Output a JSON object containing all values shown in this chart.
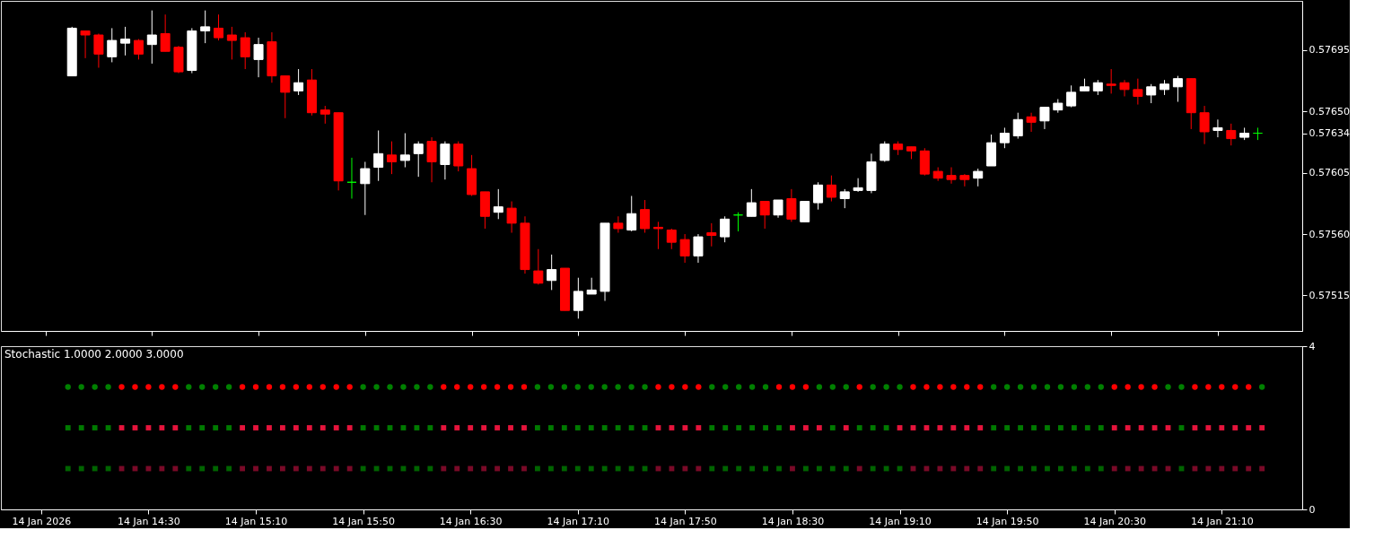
{
  "chart_data": [
    {
      "type": "candlestick",
      "x": [
        "2026-01-14T14:00",
        "2026-01-14T14:05",
        "2026-01-14T14:10",
        "2026-01-14T14:15",
        "2026-01-14T14:20",
        "2026-01-14T14:25",
        "2026-01-14T14:30",
        "2026-01-14T14:35",
        "2026-01-14T14:40",
        "2026-01-14T14:45",
        "2026-01-14T14:50",
        "2026-01-14T14:55",
        "2026-01-14T15:00",
        "2026-01-14T15:05",
        "2026-01-14T15:10",
        "2026-01-14T15:15",
        "2026-01-14T15:20",
        "2026-01-14T15:25",
        "2026-01-14T15:30",
        "2026-01-14T15:35",
        "2026-01-14T15:40",
        "2026-01-14T15:45",
        "2026-01-14T15:50",
        "2026-01-14T15:55",
        "2026-01-14T16:00",
        "2026-01-14T16:05",
        "2026-01-14T16:10",
        "2026-01-14T16:15",
        "2026-01-14T16:20",
        "2026-01-14T16:25",
        "2026-01-14T16:30",
        "2026-01-14T16:35",
        "2026-01-14T16:40",
        "2026-01-14T16:45",
        "2026-01-14T16:50",
        "2026-01-14T16:55",
        "2026-01-14T17:00",
        "2026-01-14T17:05",
        "2026-01-14T17:10",
        "2026-01-14T17:15",
        "2026-01-14T17:20",
        "2026-01-14T17:25",
        "2026-01-14T17:30",
        "2026-01-14T17:35",
        "2026-01-14T17:40",
        "2026-01-14T17:45",
        "2026-01-14T17:50",
        "2026-01-14T17:55",
        "2026-01-14T18:00",
        "2026-01-14T18:05",
        "2026-01-14T18:10",
        "2026-01-14T18:15",
        "2026-01-14T18:20",
        "2026-01-14T18:25",
        "2026-01-14T18:30",
        "2026-01-14T18:35",
        "2026-01-14T18:40",
        "2026-01-14T18:45",
        "2026-01-14T18:50",
        "2026-01-14T18:55",
        "2026-01-14T19:00",
        "2026-01-14T19:05",
        "2026-01-14T19:10",
        "2026-01-14T19:15",
        "2026-01-14T19:20",
        "2026-01-14T19:25",
        "2026-01-14T19:30",
        "2026-01-14T19:35",
        "2026-01-14T19:40",
        "2026-01-14T19:45",
        "2026-01-14T19:50",
        "2026-01-14T19:55",
        "2026-01-14T20:00",
        "2026-01-14T20:05",
        "2026-01-14T20:10",
        "2026-01-14T20:15",
        "2026-01-14T20:20",
        "2026-01-14T20:25",
        "2026-01-14T20:30",
        "2026-01-14T20:35",
        "2026-01-14T20:40",
        "2026-01-14T20:45",
        "2026-01-14T20:50",
        "2026-01-14T20:55",
        "2026-01-14T21:00",
        "2026-01-14T21:05",
        "2026-01-14T21:10",
        "2026-01-14T21:15",
        "2026-01-14T21:20",
        "2026-01-14T21:25"
      ],
      "ohlc": [
        [
          0.57676,
          0.57712,
          0.57676,
          0.57711
        ],
        [
          0.57709,
          0.57709,
          0.57689,
          0.57706
        ],
        [
          0.57706,
          0.57707,
          0.57682,
          0.57692
        ],
        [
          0.5769,
          0.57711,
          0.57686,
          0.57702
        ],
        [
          0.577,
          0.57712,
          0.57691,
          0.57703
        ],
        [
          0.57702,
          0.57703,
          0.57688,
          0.57692
        ],
        [
          0.57699,
          0.57724,
          0.57685,
          0.57706
        ],
        [
          0.57707,
          0.57721,
          0.57694,
          0.57694
        ],
        [
          0.57697,
          0.57698,
          0.57678,
          0.57679
        ],
        [
          0.5768,
          0.57711,
          0.57678,
          0.57709
        ],
        [
          0.57709,
          0.57724,
          0.577,
          0.57712
        ],
        [
          0.57711,
          0.57721,
          0.57702,
          0.57704
        ],
        [
          0.57706,
          0.57712,
          0.57688,
          0.57702
        ],
        [
          0.57704,
          0.57708,
          0.57681,
          0.5769
        ],
        [
          0.57688,
          0.57704,
          0.57675,
          0.57699
        ],
        [
          0.57701,
          0.57708,
          0.57671,
          0.57676
        ],
        [
          0.57676,
          0.57676,
          0.57645,
          0.57664
        ],
        [
          0.57665,
          0.57681,
          0.57662,
          0.57671
        ],
        [
          0.57673,
          0.57681,
          0.57647,
          0.57649
        ],
        [
          0.57651,
          0.57654,
          0.57641,
          0.57648
        ],
        [
          0.57649,
          0.57649,
          0.57592,
          0.57599
        ],
        [
          0.57598,
          0.57616,
          0.57586,
          0.57598
        ],
        [
          0.57597,
          0.57613,
          0.57574,
          0.57608
        ],
        [
          0.57609,
          0.57636,
          0.57599,
          0.57619
        ],
        [
          0.57618,
          0.57628,
          0.57604,
          0.57613
        ],
        [
          0.57614,
          0.57634,
          0.57609,
          0.57618
        ],
        [
          0.57619,
          0.57628,
          0.57602,
          0.57626
        ],
        [
          0.57628,
          0.57631,
          0.57598,
          0.57613
        ],
        [
          0.57611,
          0.57628,
          0.576,
          0.57626
        ],
        [
          0.57626,
          0.57628,
          0.57606,
          0.5761
        ],
        [
          0.57608,
          0.57618,
          0.57588,
          0.57589
        ],
        [
          0.57591,
          0.57591,
          0.57564,
          0.57573
        ],
        [
          0.57576,
          0.57593,
          0.57571,
          0.5758
        ],
        [
          0.57579,
          0.57584,
          0.57561,
          0.57568
        ],
        [
          0.57568,
          0.57573,
          0.57531,
          0.57534
        ],
        [
          0.57533,
          0.57549,
          0.57523,
          0.57524
        ],
        [
          0.57526,
          0.57545,
          0.57519,
          0.57534
        ],
        [
          0.57535,
          0.57535,
          0.57504,
          0.57504
        ],
        [
          0.57504,
          0.57528,
          0.57498,
          0.57518
        ],
        [
          0.57516,
          0.57528,
          0.57516,
          0.57519
        ],
        [
          0.57518,
          0.57568,
          0.57511,
          0.57568
        ],
        [
          0.57568,
          0.57573,
          0.57561,
          0.57564
        ],
        [
          0.57563,
          0.57588,
          0.57562,
          0.57575
        ],
        [
          0.57578,
          0.57585,
          0.57561,
          0.57564
        ],
        [
          0.57565,
          0.57569,
          0.57549,
          0.57564
        ],
        [
          0.57563,
          0.57564,
          0.57549,
          0.57554
        ],
        [
          0.57556,
          0.5756,
          0.57539,
          0.57544
        ],
        [
          0.57544,
          0.5756,
          0.57539,
          0.57558
        ],
        [
          0.57561,
          0.57568,
          0.57551,
          0.57559
        ],
        [
          0.57558,
          0.57573,
          0.57554,
          0.57571
        ],
        [
          0.57574,
          0.57576,
          0.57562,
          0.57574
        ],
        [
          0.57573,
          0.57593,
          0.57573,
          0.57583
        ],
        [
          0.57584,
          0.57584,
          0.57564,
          0.57574
        ],
        [
          0.57574,
          0.57585,
          0.57572,
          0.57585
        ],
        [
          0.57586,
          0.57593,
          0.57569,
          0.57571
        ],
        [
          0.57569,
          0.57584,
          0.57569,
          0.57584
        ],
        [
          0.57583,
          0.57598,
          0.57578,
          0.57596
        ],
        [
          0.57596,
          0.57603,
          0.57584,
          0.57587
        ],
        [
          0.57586,
          0.57593,
          0.57579,
          0.57591
        ],
        [
          0.57592,
          0.57601,
          0.57591,
          0.57594
        ],
        [
          0.57592,
          0.57619,
          0.5759,
          0.57613
        ],
        [
          0.57614,
          0.57628,
          0.57613,
          0.57626
        ],
        [
          0.57626,
          0.57628,
          0.57618,
          0.57622
        ],
        [
          0.57624,
          0.57624,
          0.57615,
          0.57621
        ],
        [
          0.57621,
          0.57623,
          0.57603,
          0.57604
        ],
        [
          0.57606,
          0.57609,
          0.57599,
          0.57601
        ],
        [
          0.57603,
          0.57609,
          0.57597,
          0.576
        ],
        [
          0.57603,
          0.57604,
          0.57595,
          0.576
        ],
        [
          0.57601,
          0.57608,
          0.57595,
          0.57606
        ],
        [
          0.5761,
          0.57633,
          0.5761,
          0.57627
        ],
        [
          0.57627,
          0.57638,
          0.57623,
          0.57634
        ],
        [
          0.57632,
          0.57649,
          0.5763,
          0.57644
        ],
        [
          0.57646,
          0.57649,
          0.57635,
          0.57642
        ],
        [
          0.57643,
          0.57653,
          0.57637,
          0.57653
        ],
        [
          0.57651,
          0.57659,
          0.57649,
          0.57656
        ],
        [
          0.57654,
          0.57669,
          0.57653,
          0.57664
        ],
        [
          0.57665,
          0.57674,
          0.57665,
          0.57668
        ],
        [
          0.57665,
          0.57673,
          0.57662,
          0.57671
        ],
        [
          0.5767,
          0.57681,
          0.57663,
          0.57669
        ],
        [
          0.57671,
          0.57673,
          0.57661,
          0.57666
        ],
        [
          0.57666,
          0.57674,
          0.57655,
          0.57661
        ],
        [
          0.57662,
          0.5767,
          0.57656,
          0.57668
        ],
        [
          0.57666,
          0.57673,
          0.57662,
          0.5767
        ],
        [
          0.57668,
          0.57676,
          0.57657,
          0.57674
        ],
        [
          0.57674,
          0.57674,
          0.57637,
          0.57649
        ],
        [
          0.57649,
          0.57654,
          0.57626,
          0.57635
        ],
        [
          0.57636,
          0.57644,
          0.57631,
          0.57638
        ],
        [
          0.57636,
          0.57641,
          0.57625,
          0.5763
        ],
        [
          0.57631,
          0.57638,
          0.57629,
          0.57634
        ],
        [
          0.57634,
          0.57638,
          0.57629,
          0.57634
        ]
      ],
      "colors": [
        "#ffffff",
        "#ff0000",
        "#ff0000",
        "#ffffff",
        "#ffffff",
        "#ff0000",
        "#ffffff",
        "#ff0000",
        "#ff0000",
        "#ffffff",
        "#ffffff",
        "#ff0000",
        "#ff0000",
        "#ff0000",
        "#ffffff",
        "#ff0000",
        "#ff0000",
        "#ffffff",
        "#ff0000",
        "#ff0000",
        "#ff0000",
        "#00ff00",
        "#ffffff",
        "#ffffff",
        "#ff0000",
        "#ffffff",
        "#ffffff",
        "#ff0000",
        "#ffffff",
        "#ff0000",
        "#ff0000",
        "#ff0000",
        "#ffffff",
        "#ff0000",
        "#ff0000",
        "#ff0000",
        "#ffffff",
        "#ff0000",
        "#ffffff",
        "#ffffff",
        "#ffffff",
        "#ff0000",
        "#ffffff",
        "#ff0000",
        "#ff0000",
        "#ff0000",
        "#ff0000",
        "#ffffff",
        "#ff0000",
        "#ffffff",
        "#00ff00",
        "#ffffff",
        "#ff0000",
        "#ffffff",
        "#ff0000",
        "#ffffff",
        "#ffffff",
        "#ff0000",
        "#ffffff",
        "#ffffff",
        "#ffffff",
        "#ffffff",
        "#ff0000",
        "#ff0000",
        "#ff0000",
        "#ff0000",
        "#ff0000",
        "#ff0000",
        "#ffffff",
        "#ffffff",
        "#ffffff",
        "#ffffff",
        "#ff0000",
        "#ffffff",
        "#ffffff",
        "#ffffff",
        "#ffffff",
        "#ffffff",
        "#ff0000",
        "#ff0000",
        "#ff0000",
        "#ffffff",
        "#ffffff",
        "#ffffff",
        "#ff0000",
        "#ff0000",
        "#ffffff",
        "#ff0000",
        "#ffffff",
        "#00ff00"
      ],
      "xlim": [
        "2026-01-14T13:35",
        "2026-01-14T21:40"
      ],
      "xticks": [
        {
          "value": "2026-01-14T13:50",
          "label": null
        },
        {
          "value": "2026-01-14T14:30",
          "label": null
        },
        {
          "value": "2026-01-14T15:10",
          "label": null
        },
        {
          "value": "2026-01-14T15:50",
          "label": null
        },
        {
          "value": "2026-01-14T16:30",
          "label": null
        },
        {
          "value": "2026-01-14T17:10",
          "label": null
        },
        {
          "value": "2026-01-14T17:50",
          "label": null
        },
        {
          "value": "2026-01-14T18:30",
          "label": null
        },
        {
          "value": "2026-01-14T19:10",
          "label": null
        },
        {
          "value": "2026-01-14T19:50",
          "label": null
        },
        {
          "value": "2026-01-14T20:30",
          "label": null
        },
        {
          "value": "2026-01-14T21:10",
          "label": null
        }
      ],
      "ylim": [
        0.57489,
        0.57731
      ],
      "yticks": [
        {
          "value": 0.57515,
          "label": "0.57515"
        },
        {
          "value": 0.5756,
          "label": "0.57560"
        },
        {
          "value": 0.57605,
          "label": "0.57605"
        },
        {
          "value": 0.57634,
          "label": "0.57634"
        },
        {
          "value": 0.5765,
          "label": "0.57650"
        },
        {
          "value": 0.57695,
          "label": "0.57695"
        }
      ],
      "tick_labels": "y"
    },
    {
      "type": "scatter",
      "title": "Stochastic 1.0000 2.0000 3.0000",
      "x": [
        "2026-01-14T14:00",
        "2026-01-14T14:05",
        "2026-01-14T14:10",
        "2026-01-14T14:15",
        "2026-01-14T14:20",
        "2026-01-14T14:25",
        "2026-01-14T14:30",
        "2026-01-14T14:35",
        "2026-01-14T14:40",
        "2026-01-14T14:45",
        "2026-01-14T14:50",
        "2026-01-14T14:55",
        "2026-01-14T15:00",
        "2026-01-14T15:05",
        "2026-01-14T15:10",
        "2026-01-14T15:15",
        "2026-01-14T15:20",
        "2026-01-14T15:25",
        "2026-01-14T15:30",
        "2026-01-14T15:35",
        "2026-01-14T15:40",
        "2026-01-14T15:45",
        "2026-01-14T15:50",
        "2026-01-14T15:55",
        "2026-01-14T16:00",
        "2026-01-14T16:05",
        "2026-01-14T16:10",
        "2026-01-14T16:15",
        "2026-01-14T16:20",
        "2026-01-14T16:25",
        "2026-01-14T16:30",
        "2026-01-14T16:35",
        "2026-01-14T16:40",
        "2026-01-14T16:45",
        "2026-01-14T16:50",
        "2026-01-14T16:55",
        "2026-01-14T17:00",
        "2026-01-14T17:05",
        "2026-01-14T17:10",
        "2026-01-14T17:15",
        "2026-01-14T17:20",
        "2026-01-14T17:25",
        "2026-01-14T17:30",
        "2026-01-14T17:35",
        "2026-01-14T17:40",
        "2026-01-14T17:45",
        "2026-01-14T17:50",
        "2026-01-14T17:55",
        "2026-01-14T18:00",
        "2026-01-14T18:05",
        "2026-01-14T18:10",
        "2026-01-14T18:15",
        "2026-01-14T18:20",
        "2026-01-14T18:25",
        "2026-01-14T18:30",
        "2026-01-14T18:35",
        "2026-01-14T18:40",
        "2026-01-14T18:45",
        "2026-01-14T18:50",
        "2026-01-14T18:55",
        "2026-01-14T19:00",
        "2026-01-14T19:05",
        "2026-01-14T19:10",
        "2026-01-14T19:15",
        "2026-01-14T19:20",
        "2026-01-14T19:25",
        "2026-01-14T19:30",
        "2026-01-14T19:35",
        "2026-01-14T19:40",
        "2026-01-14T19:45",
        "2026-01-14T19:50",
        "2026-01-14T19:55",
        "2026-01-14T20:00",
        "2026-01-14T20:05",
        "2026-01-14T20:10",
        "2026-01-14T20:15",
        "2026-01-14T20:20",
        "2026-01-14T20:25",
        "2026-01-14T20:30",
        "2026-01-14T20:35",
        "2026-01-14T20:40",
        "2026-01-14T20:45",
        "2026-01-14T20:50",
        "2026-01-14T20:55",
        "2026-01-14T21:00",
        "2026-01-14T21:05",
        "2026-01-14T21:10",
        "2026-01-14T21:15",
        "2026-01-14T21:20",
        "2026-01-14T21:25"
      ],
      "series": [
        {
          "marker": "circle",
          "values": [
            3,
            3,
            3,
            3,
            3,
            3,
            3,
            3,
            3,
            3,
            3,
            3,
            3,
            3,
            3,
            3,
            3,
            3,
            3,
            3,
            3,
            3,
            3,
            3,
            3,
            3,
            3,
            3,
            3,
            3,
            3,
            3,
            3,
            3,
            3,
            3,
            3,
            3,
            3,
            3,
            3,
            3,
            3,
            3,
            3,
            3,
            3,
            3,
            3,
            3,
            3,
            3,
            3,
            3,
            3,
            3,
            3,
            3,
            3,
            3,
            3,
            3,
            3,
            3,
            3,
            3,
            3,
            3,
            3,
            3,
            3,
            3,
            3,
            3,
            3,
            3,
            3,
            3,
            3,
            3,
            3,
            3,
            3,
            3,
            3,
            3,
            3,
            3,
            3,
            3
          ],
          "colors": [
            "#008000",
            "#008000",
            "#008000",
            "#008000",
            "#ff0000",
            "#ff0000",
            "#ff0000",
            "#ff0000",
            "#ff0000",
            "#008000",
            "#008000",
            "#008000",
            "#008000",
            "#ff0000",
            "#ff0000",
            "#ff0000",
            "#ff0000",
            "#ff0000",
            "#ff0000",
            "#ff0000",
            "#ff0000",
            "#ff0000",
            "#008000",
            "#008000",
            "#008000",
            "#008000",
            "#008000",
            "#008000",
            "#ff0000",
            "#ff0000",
            "#ff0000",
            "#ff0000",
            "#ff0000",
            "#ff0000",
            "#ff0000",
            "#008000",
            "#008000",
            "#008000",
            "#008000",
            "#008000",
            "#008000",
            "#008000",
            "#008000",
            "#008000",
            "#ff0000",
            "#ff0000",
            "#ff0000",
            "#ff0000",
            "#008000",
            "#008000",
            "#008000",
            "#008000",
            "#008000",
            "#ff0000",
            "#ff0000",
            "#ff0000",
            "#008000",
            "#008000",
            "#008000",
            "#ff0000",
            "#008000",
            "#008000",
            "#008000",
            "#ff0000",
            "#ff0000",
            "#ff0000",
            "#ff0000",
            "#ff0000",
            "#ff0000",
            "#008000",
            "#008000",
            "#008000",
            "#008000",
            "#008000",
            "#008000",
            "#008000",
            "#008000",
            "#008000",
            "#ff0000",
            "#ff0000",
            "#ff0000",
            "#ff0000",
            "#008000",
            "#008000",
            "#ff0000",
            "#ff0000",
            "#ff0000",
            "#ff0000",
            "#ff0000",
            "#008000"
          ]
        },
        {
          "marker": "square",
          "values": [
            2,
            2,
            2,
            2,
            2,
            2,
            2,
            2,
            2,
            2,
            2,
            2,
            2,
            2,
            2,
            2,
            2,
            2,
            2,
            2,
            2,
            2,
            2,
            2,
            2,
            2,
            2,
            2,
            2,
            2,
            2,
            2,
            2,
            2,
            2,
            2,
            2,
            2,
            2,
            2,
            2,
            2,
            2,
            2,
            2,
            2,
            2,
            2,
            2,
            2,
            2,
            2,
            2,
            2,
            2,
            2,
            2,
            2,
            2,
            2,
            2,
            2,
            2,
            2,
            2,
            2,
            2,
            2,
            2,
            2,
            2,
            2,
            2,
            2,
            2,
            2,
            2,
            2,
            2,
            2,
            2,
            2,
            2,
            2,
            2,
            2,
            2,
            2,
            2,
            2
          ],
          "colors": [
            "#007a00",
            "#007a00",
            "#007a00",
            "#007a00",
            "#e6143c",
            "#e6143c",
            "#e6143c",
            "#e6143c",
            "#e6143c",
            "#007a00",
            "#007a00",
            "#007a00",
            "#007a00",
            "#e6143c",
            "#e6143c",
            "#e6143c",
            "#e6143c",
            "#e6143c",
            "#e6143c",
            "#e6143c",
            "#e6143c",
            "#e6143c",
            "#007a00",
            "#007a00",
            "#007a00",
            "#007a00",
            "#007a00",
            "#007a00",
            "#e6143c",
            "#e6143c",
            "#e6143c",
            "#e6143c",
            "#e6143c",
            "#e6143c",
            "#e6143c",
            "#007a00",
            "#007a00",
            "#007a00",
            "#007a00",
            "#007a00",
            "#007a00",
            "#007a00",
            "#007a00",
            "#007a00",
            "#e6143c",
            "#e6143c",
            "#e6143c",
            "#e6143c",
            "#007a00",
            "#007a00",
            "#007a00",
            "#007a00",
            "#007a00",
            "#007a00",
            "#e6143c",
            "#e6143c",
            "#e6143c",
            "#007a00",
            "#e6143c",
            "#007a00",
            "#007a00",
            "#007a00",
            "#e6143c",
            "#e6143c",
            "#e6143c",
            "#e6143c",
            "#e6143c",
            "#e6143c",
            "#e6143c",
            "#007a00",
            "#007a00",
            "#007a00",
            "#007a00",
            "#007a00",
            "#007a00",
            "#007a00",
            "#007a00",
            "#007a00",
            "#e6143c",
            "#e6143c",
            "#e6143c",
            "#e6143c",
            "#e6143c",
            "#007a00",
            "#e6143c",
            "#e6143c",
            "#e6143c",
            "#e6143c",
            "#e6143c",
            "#e6143c"
          ]
        },
        {
          "marker": "square",
          "values": [
            1,
            1,
            1,
            1,
            1,
            1,
            1,
            1,
            1,
            1,
            1,
            1,
            1,
            1,
            1,
            1,
            1,
            1,
            1,
            1,
            1,
            1,
            1,
            1,
            1,
            1,
            1,
            1,
            1,
            1,
            1,
            1,
            1,
            1,
            1,
            1,
            1,
            1,
            1,
            1,
            1,
            1,
            1,
            1,
            1,
            1,
            1,
            1,
            1,
            1,
            1,
            1,
            1,
            1,
            1,
            1,
            1,
            1,
            1,
            1,
            1,
            1,
            1,
            1,
            1,
            1,
            1,
            1,
            1,
            1,
            1,
            1,
            1,
            1,
            1,
            1,
            1,
            1,
            1,
            1,
            1,
            1,
            1,
            1,
            1,
            1,
            1,
            1,
            1,
            1
          ],
          "colors": [
            "#006400",
            "#006400",
            "#006400",
            "#006400",
            "#7a0a28",
            "#7a0a28",
            "#7a0a28",
            "#7a0a28",
            "#7a0a28",
            "#006400",
            "#006400",
            "#006400",
            "#006400",
            "#7a0a28",
            "#7a0a28",
            "#7a0a28",
            "#7a0a28",
            "#7a0a28",
            "#7a0a28",
            "#7a0a28",
            "#7a0a28",
            "#7a0a28",
            "#006400",
            "#006400",
            "#006400",
            "#006400",
            "#006400",
            "#006400",
            "#7a0a28",
            "#7a0a28",
            "#7a0a28",
            "#7a0a28",
            "#7a0a28",
            "#7a0a28",
            "#7a0a28",
            "#006400",
            "#006400",
            "#006400",
            "#006400",
            "#006400",
            "#006400",
            "#006400",
            "#006400",
            "#006400",
            "#7a0a28",
            "#7a0a28",
            "#7a0a28",
            "#7a0a28",
            "#006400",
            "#006400",
            "#006400",
            "#006400",
            "#006400",
            "#006400",
            "#7a0a28",
            "#006400",
            "#006400",
            "#006400",
            "#006400",
            "#7a0a28",
            "#006400",
            "#006400",
            "#006400",
            "#7a0a28",
            "#7a0a28",
            "#7a0a28",
            "#7a0a28",
            "#7a0a28",
            "#7a0a28",
            "#006400",
            "#006400",
            "#006400",
            "#006400",
            "#006400",
            "#006400",
            "#006400",
            "#006400",
            "#006400",
            "#7a0a28",
            "#7a0a28",
            "#7a0a28",
            "#7a0a28",
            "#7a0a28",
            "#006400",
            "#7a0a28",
            "#7a0a28",
            "#7a0a28",
            "#7a0a28",
            "#7a0a28",
            "#7a0a28"
          ]
        }
      ],
      "xlim": [
        "2026-01-14T13:35",
        "2026-01-14T21:40"
      ],
      "xticks": [
        {
          "value": "2026-01-14T13:50",
          "label": "14 Jan 2026"
        },
        {
          "value": "2026-01-14T14:30",
          "label": "14 Jan 14:30"
        },
        {
          "value": "2026-01-14T15:10",
          "label": "14 Jan 15:10"
        },
        {
          "value": "2026-01-14T15:50",
          "label": "14 Jan 15:50"
        },
        {
          "value": "2026-01-14T16:30",
          "label": "14 Jan 16:30"
        },
        {
          "value": "2026-01-14T17:10",
          "label": "14 Jan 17:10"
        },
        {
          "value": "2026-01-14T17:50",
          "label": "14 Jan 17:50"
        },
        {
          "value": "2026-01-14T18:30",
          "label": "14 Jan 18:30"
        },
        {
          "value": "2026-01-14T19:10",
          "label": "14 Jan 19:10"
        },
        {
          "value": "2026-01-14T19:50",
          "label": "14 Jan 19:50"
        },
        {
          "value": "2026-01-14T20:30",
          "label": "14 Jan 20:30"
        },
        {
          "value": "2026-01-14T21:10",
          "label": "14 Jan 21:10"
        }
      ],
      "ylim": [
        0,
        4
      ],
      "yticks": [
        0,
        4
      ]
    }
  ]
}
